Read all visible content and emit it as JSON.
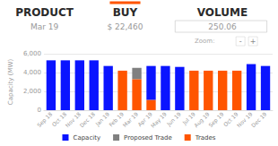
{
  "chart_data": {
    "type": "bar",
    "stacked": true,
    "grid": true,
    "annotations": [
      "PRODUCT",
      "BUY",
      "VOLUME",
      "Mar 19",
      "$ 22,460",
      "250.06",
      "Zoom:",
      "-",
      "+"
    ],
    "y_label": "Capacity (MW)",
    "categories": [
      "Sep 18",
      "Oct 18",
      "Nov 18",
      "Dec 18",
      "Jan 19",
      "Feb 19",
      "Mar 19",
      "Apr 19",
      "May 19",
      "Jun 19",
      "Jul 19",
      "Aug 19",
      "Sep 19",
      "Oct 19",
      "Nov 19",
      "Dec 19"
    ],
    "series": [
      {
        "name": "Capacity",
        "color": "#0a14ff",
        "values": [
          5300,
          5300,
          5300,
          5300,
          4700,
          0,
          0,
          3600,
          4700,
          4600,
          0,
          0,
          0,
          0,
          4900,
          4700
        ]
      },
      {
        "name": "Proposed Trade",
        "color": "#808080",
        "values": [
          0,
          0,
          0,
          0,
          0,
          0,
          1200,
          0,
          0,
          0,
          0,
          0,
          0,
          0,
          0,
          0
        ]
      },
      {
        "name": "Trades",
        "color": "#ff5500",
        "values": [
          0,
          0,
          0,
          0,
          0,
          4200,
          3300,
          1100,
          0,
          0,
          4200,
          4200,
          4200,
          4200,
          0,
          0
        ]
      }
    ],
    "ylim": [
      0,
      6000
    ],
    "yticks": [
      0,
      2000,
      4000,
      6000
    ]
  }
}
